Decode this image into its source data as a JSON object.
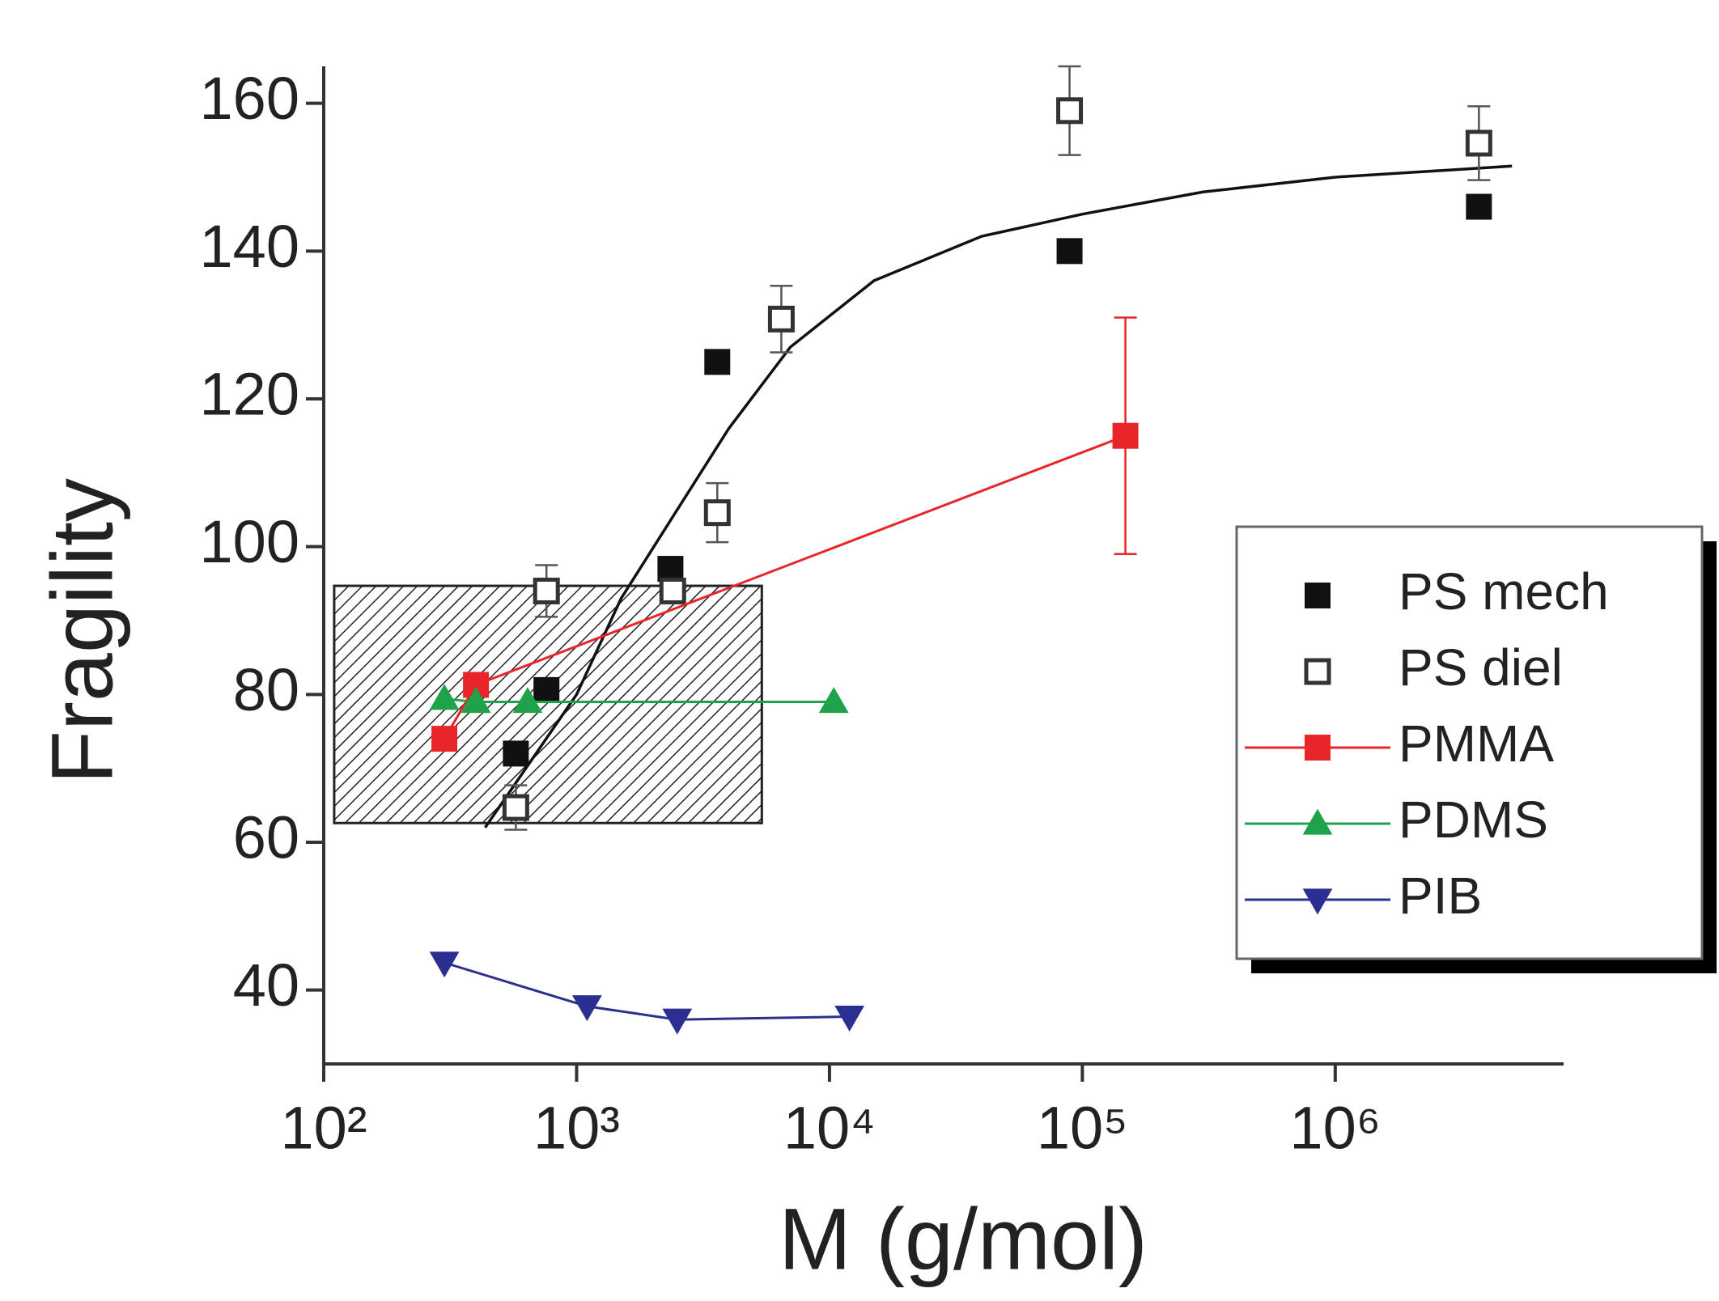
{
  "chart_data": {
    "type": "scatter",
    "x_label": "M (g/mol)",
    "y_label": "Fragility",
    "xscale": "log",
    "xlim": [
      100,
      8000000
    ],
    "ylim": [
      30,
      165
    ],
    "xticks": [
      {
        "value": 100,
        "label": "10²"
      },
      {
        "value": 1000,
        "label": "10³"
      },
      {
        "value": 10000,
        "label": "10⁴"
      },
      {
        "value": 100000,
        "label": "10⁵"
      },
      {
        "value": 1000000,
        "label": "10⁶"
      }
    ],
    "yticks": [
      40,
      60,
      80,
      100,
      120,
      140,
      160
    ],
    "shaded_region": {
      "x": [
        110,
        5400
      ],
      "y": [
        62.6,
        94.7
      ]
    },
    "fit_curve": {
      "color": "#111111",
      "x": [
        435,
        1000,
        1500,
        2500,
        4000,
        7000,
        15000,
        40000,
        100000,
        300000,
        1000000,
        5000000
      ],
      "values": [
        62,
        80,
        93,
        105,
        116,
        127,
        136,
        142,
        145,
        148,
        150,
        151.5
      ]
    },
    "series": [
      {
        "name": "PS mech",
        "color": "#111111",
        "marker": "square",
        "line": false,
        "x": [
          575,
          760,
          2350,
          3600,
          89000,
          3700000
        ],
        "values": [
          72,
          80.6,
          97,
          125,
          140,
          146
        ]
      },
      {
        "name": "PS diel",
        "color": "#333333",
        "marker": "open-square",
        "line": false,
        "x": [
          575,
          760,
          2400,
          3600,
          6450,
          89000,
          3700000
        ],
        "values": [
          64.7,
          94,
          94,
          104.6,
          130.8,
          159,
          154.6
        ],
        "errors": [
          3,
          3.5,
          1.5,
          4,
          4.5,
          6,
          5
        ]
      },
      {
        "name": "PMMA",
        "color": "#e8262a",
        "marker": "square",
        "line": true,
        "x": [
          300,
          400,
          148000
        ],
        "values": [
          74,
          81.3,
          115
        ],
        "errors": [
          null,
          null,
          16
        ]
      },
      {
        "name": "PDMS",
        "color": "#1fa34a",
        "marker": "triangle-up",
        "line": true,
        "x": [
          300,
          400,
          640,
          10400
        ],
        "values": [
          79.4,
          79,
          79,
          79
        ]
      },
      {
        "name": "PIB",
        "color": "#2b2f8f",
        "marker": "triangle-down",
        "line": true,
        "x": [
          300,
          1100,
          2500,
          12000
        ],
        "values": [
          43.7,
          37.8,
          36,
          36.4
        ]
      }
    ]
  }
}
